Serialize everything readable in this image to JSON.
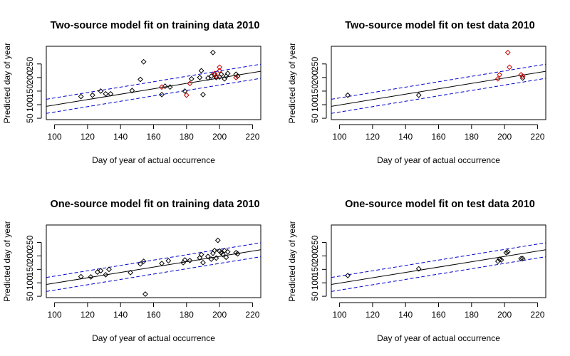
{
  "chart_data": [
    {
      "type": "scatter",
      "title": "Two-source model fit on training data  2010",
      "xlabel": "Day of year of actual occurrence",
      "ylabel": "Predicted day of year",
      "xlim": [
        95,
        225
      ],
      "ylim": [
        45,
        315
      ],
      "xticks": [
        100,
        120,
        140,
        160,
        180,
        200,
        220
      ],
      "yticks": [
        50,
        100,
        150,
        200,
        250
      ],
      "grid": false,
      "fit_line": {
        "slope": 0.993,
        "intercept": -0.4,
        "color": "#000000"
      },
      "band_lines": {
        "offset": 26,
        "color": "#0000cc",
        "dash": true
      },
      "series": [
        {
          "color": "#000000",
          "points": [
            [
              116,
              130
            ],
            [
              123,
              135
            ],
            [
              128,
              150
            ],
            [
              131,
              140
            ],
            [
              134,
              140
            ],
            [
              147,
              152
            ],
            [
              152,
              193
            ],
            [
              154,
              258
            ],
            [
              165,
              137
            ],
            [
              167,
              168
            ],
            [
              170,
              165
            ],
            [
              179,
              150
            ],
            [
              183,
              195
            ],
            [
              188,
              200
            ],
            [
              189,
              225
            ],
            [
              190,
              137
            ],
            [
              193,
              198
            ],
            [
              195,
              205
            ],
            [
              196,
              292
            ],
            [
              197,
              210
            ],
            [
              198,
              200
            ],
            [
              200,
              202
            ],
            [
              201,
              212
            ],
            [
              203,
              195
            ],
            [
              204,
              205
            ],
            [
              205,
              215
            ],
            [
              210,
              212
            ],
            [
              211,
              205
            ]
          ]
        },
        {
          "color": "#cc0000",
          "points": [
            [
              165,
              165
            ],
            [
              180,
              135
            ],
            [
              182,
              178
            ],
            [
              197,
              215
            ],
            [
              198,
              205
            ],
            [
              200,
              225
            ],
            [
              200,
              238
            ],
            [
              210,
              200
            ]
          ]
        }
      ]
    },
    {
      "type": "scatter",
      "title": "Two-source model fit on test data  2010",
      "xlabel": "Day of year of actual occurrence",
      "ylabel": "Predicted day of year",
      "xlim": [
        95,
        225
      ],
      "ylim": [
        45,
        315
      ],
      "xticks": [
        100,
        120,
        140,
        160,
        180,
        200,
        220
      ],
      "yticks": [
        50,
        100,
        150,
        200,
        250
      ],
      "grid": false,
      "fit_line": {
        "slope": 0.993,
        "intercept": -0.4,
        "color": "#000000"
      },
      "band_lines": {
        "offset": 26,
        "color": "#0000cc",
        "dash": true
      },
      "series": [
        {
          "color": "#000000",
          "points": [
            [
              105,
              135
            ],
            [
              148,
              135
            ],
            [
              211,
              198
            ]
          ]
        },
        {
          "color": "#cc0000",
          "points": [
            [
              196,
              195
            ],
            [
              197,
              210
            ],
            [
              202,
              292
            ],
            [
              203,
              238
            ],
            [
              210,
              210
            ],
            [
              211,
              205
            ]
          ]
        }
      ]
    },
    {
      "type": "scatter",
      "title": "One-source model fit on training data  2010",
      "xlabel": "Day of year of actual occurrence",
      "ylabel": "Predicted day of year",
      "xlim": [
        95,
        225
      ],
      "ylim": [
        45,
        315
      ],
      "xticks": [
        100,
        120,
        140,
        160,
        180,
        200,
        220
      ],
      "yticks": [
        50,
        100,
        150,
        200,
        250
      ],
      "grid": false,
      "fit_line": {
        "slope": 0.993,
        "intercept": -0.4,
        "color": "#000000"
      },
      "band_lines": {
        "offset": 26,
        "color": "#0000cc",
        "dash": true
      },
      "series": [
        {
          "color": "#000000",
          "points": [
            [
              116,
              123
            ],
            [
              122,
              122
            ],
            [
              126,
              140
            ],
            [
              128,
              145
            ],
            [
              131,
              130
            ],
            [
              133,
              150
            ],
            [
              146,
              138
            ],
            [
              152,
              170
            ],
            [
              154,
              180
            ],
            [
              155,
              58
            ],
            [
              165,
              172
            ],
            [
              169,
              182
            ],
            [
              178,
              175
            ],
            [
              179,
              185
            ],
            [
              182,
              183
            ],
            [
              188,
              193
            ],
            [
              189,
              205
            ],
            [
              190,
              175
            ],
            [
              193,
              198
            ],
            [
              195,
              188
            ],
            [
              196,
              210
            ],
            [
              197,
              220
            ],
            [
              198,
              192
            ],
            [
              199,
              258
            ],
            [
              200,
              218
            ],
            [
              201,
              212
            ],
            [
              202,
              205
            ],
            [
              203,
              220
            ],
            [
              204,
              195
            ],
            [
              205,
              215
            ],
            [
              210,
              212
            ],
            [
              211,
              208
            ]
          ]
        }
      ]
    },
    {
      "type": "scatter",
      "title": "One-source model fit on test data  2010",
      "xlabel": "Day of year of actual occurrence",
      "ylabel": "Predicted day of year",
      "xlim": [
        95,
        225
      ],
      "ylim": [
        45,
        315
      ],
      "xticks": [
        100,
        120,
        140,
        160,
        180,
        200,
        220
      ],
      "yticks": [
        50,
        100,
        150,
        200,
        250
      ],
      "grid": false,
      "fit_line": {
        "slope": 0.993,
        "intercept": -0.4,
        "color": "#000000"
      },
      "band_lines": {
        "offset": 26,
        "color": "#0000cc",
        "dash": true
      },
      "series": [
        {
          "color": "#000000",
          "points": [
            [
              105,
              127
            ],
            [
              148,
              152
            ],
            [
              196,
              180
            ],
            [
              197,
              188
            ],
            [
              198,
              185
            ],
            [
              201,
              212
            ],
            [
              202,
              215
            ],
            [
              210,
              190
            ],
            [
              211,
              190
            ]
          ]
        }
      ]
    }
  ]
}
